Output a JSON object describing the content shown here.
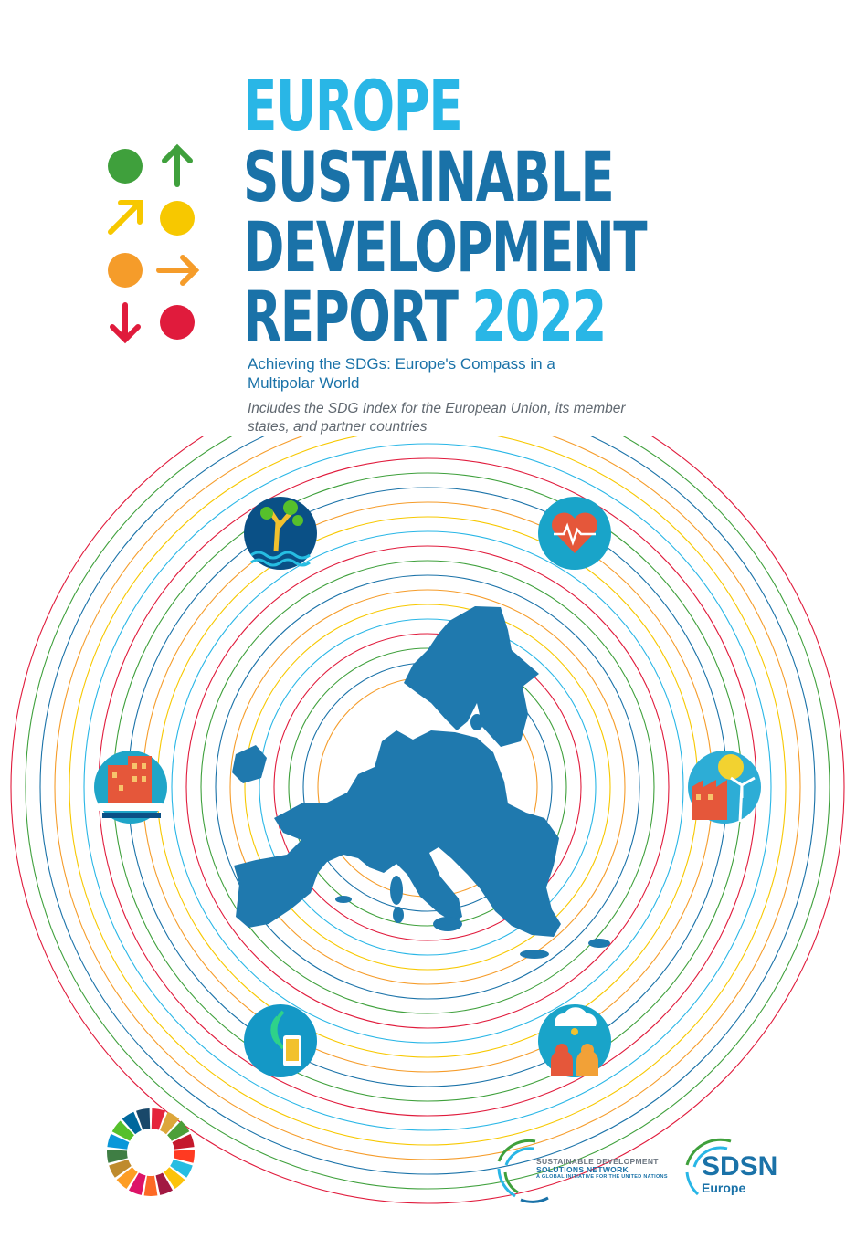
{
  "title": {
    "line1": "EUROPE",
    "line2": "SUSTAINABLE",
    "line3": "DEVELOPMENT",
    "line4": "REPORT",
    "year": "2022"
  },
  "subtitle": "Achieving the SDGs: Europe's Compass in a Multipolar World",
  "note": "Includes the SDG Index for the European Union, its member states, and partner countries",
  "colors": {
    "title_dark": "#1a72a8",
    "title_light": "#29b6e6",
    "map": "#1f79ae",
    "green": "#3fa03c",
    "yellow": "#f7c800",
    "orange": "#f59c2a",
    "red": "#e01b3c"
  },
  "indicator_icons": [
    "green-circle-icon",
    "up-arrow-icon",
    "diagonal-up-arrow-icon",
    "yellow-circle-icon",
    "orange-circle-icon",
    "right-arrow-icon",
    "down-arrow-icon",
    "red-circle-icon"
  ],
  "goal_icons": [
    "tree-water-icon",
    "heart-health-icon",
    "city-train-icon",
    "clean-energy-icon",
    "mobile-connectivity-icon",
    "people-idea-icon"
  ],
  "logos": {
    "sdsn_network_line1": "SUSTAINABLE DEVELOPMENT",
    "sdsn_network_line2": "SOLUTIONS NETWORK",
    "sdsn_network_tagline": "A GLOBAL INITIATIVE FOR THE UNITED NATIONS",
    "sdsn_europe_name": "SDSN",
    "sdsn_europe_region": "Europe"
  }
}
